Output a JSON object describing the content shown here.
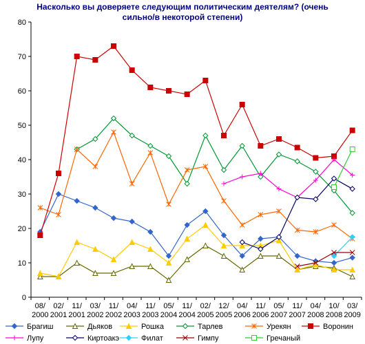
{
  "chart_data": {
    "type": "line",
    "title": "Насколько вы доверяете следующим политическим деятелям? (очень",
    "subtitle": "сильно/в некоторой степени)",
    "xlabel": "",
    "ylabel": "",
    "ylim": [
      0,
      80
    ],
    "yticks": [
      "0",
      "10",
      "20",
      "30",
      "40",
      "50",
      "60",
      "70",
      "80"
    ],
    "grid": false,
    "legend_position": "bottom",
    "categories": [
      [
        "08/",
        "2000"
      ],
      [
        "02/",
        "2001"
      ],
      [
        "11/",
        "2001"
      ],
      [
        "03/",
        "2002"
      ],
      [
        "11/",
        "2002"
      ],
      [
        "04/",
        "2003"
      ],
      [
        "11/",
        "2003"
      ],
      [
        "05/",
        "2004"
      ],
      [
        "11/",
        "2004"
      ],
      [
        "02/",
        "2005"
      ],
      [
        "12/",
        "2005"
      ],
      [
        "04/",
        "2006"
      ],
      [
        "11/",
        "2006"
      ],
      [
        "05/",
        "2007"
      ],
      [
        "11/",
        "2007"
      ],
      [
        "04/",
        "2008"
      ],
      [
        "10/",
        "2008"
      ],
      [
        "03/",
        "2009"
      ]
    ],
    "series": [
      {
        "name": "Брагиш",
        "color": "#3366cc",
        "marker": "diamond",
        "values": [
          19,
          30,
          28,
          26,
          23,
          22,
          19,
          12,
          21,
          25,
          18,
          12,
          17,
          17.5,
          12,
          10.5,
          10,
          11.5
        ]
      },
      {
        "name": "Дьяков",
        "color": "#666600",
        "marker": "triangle-open",
        "values": [
          6,
          6,
          10,
          7,
          7,
          9,
          9,
          5,
          11,
          15,
          12,
          8,
          12,
          12,
          8,
          9,
          8.5,
          6
        ]
      },
      {
        "name": "Рошка",
        "color": "#ffcc00",
        "marker": "triangle",
        "values": [
          7,
          6,
          16,
          14,
          11,
          16,
          14,
          10,
          17,
          21,
          15,
          15,
          15,
          16.5,
          8,
          9.5,
          8,
          8
        ]
      },
      {
        "name": "Тарлев",
        "color": "#009933",
        "marker": "diamond-open",
        "values": [
          null,
          null,
          43,
          46,
          52,
          47,
          44,
          41,
          33,
          47,
          37,
          44,
          35,
          41.5,
          39.5,
          36.5,
          31,
          24.5
        ]
      },
      {
        "name": "Урекян",
        "color": "#ff6600",
        "marker": "star",
        "values": [
          26,
          24,
          43,
          38,
          48,
          33,
          42,
          27,
          37,
          38,
          28,
          21,
          24,
          25,
          19.5,
          19,
          21,
          17
        ]
      },
      {
        "name": "Воронин",
        "color": "#cc0000",
        "marker": "square",
        "values": [
          18,
          36,
          70,
          69,
          73,
          66,
          61,
          60,
          59,
          63,
          47,
          56,
          44,
          46,
          43.5,
          40.5,
          41,
          48.5
        ]
      },
      {
        "name": "Лупу",
        "color": "#ff00cc",
        "marker": "plus",
        "values": [
          null,
          null,
          null,
          null,
          null,
          null,
          null,
          null,
          null,
          null,
          33,
          35,
          36,
          31.5,
          29,
          34,
          40,
          35.5
        ]
      },
      {
        "name": "Киртоакэ",
        "color": "#000066",
        "marker": "diamond-open",
        "values": [
          null,
          null,
          null,
          null,
          null,
          null,
          null,
          null,
          null,
          null,
          null,
          16,
          14,
          17.5,
          29,
          28.5,
          34.5,
          31.5
        ]
      },
      {
        "name": "Филат",
        "color": "#33ccff",
        "marker": "diamond",
        "values": [
          null,
          null,
          null,
          null,
          null,
          null,
          null,
          null,
          null,
          null,
          null,
          null,
          null,
          null,
          null,
          null,
          12,
          17.5
        ]
      },
      {
        "name": "Гимпу",
        "color": "#990000",
        "marker": "x",
        "values": [
          null,
          null,
          null,
          null,
          null,
          null,
          null,
          null,
          null,
          null,
          null,
          null,
          null,
          null,
          9,
          10,
          13,
          13
        ]
      },
      {
        "name": "Гречаный",
        "color": "#33cc33",
        "marker": "square-open",
        "values": [
          null,
          null,
          null,
          null,
          null,
          null,
          null,
          null,
          null,
          null,
          null,
          null,
          null,
          null,
          null,
          null,
          32,
          43
        ]
      }
    ]
  }
}
